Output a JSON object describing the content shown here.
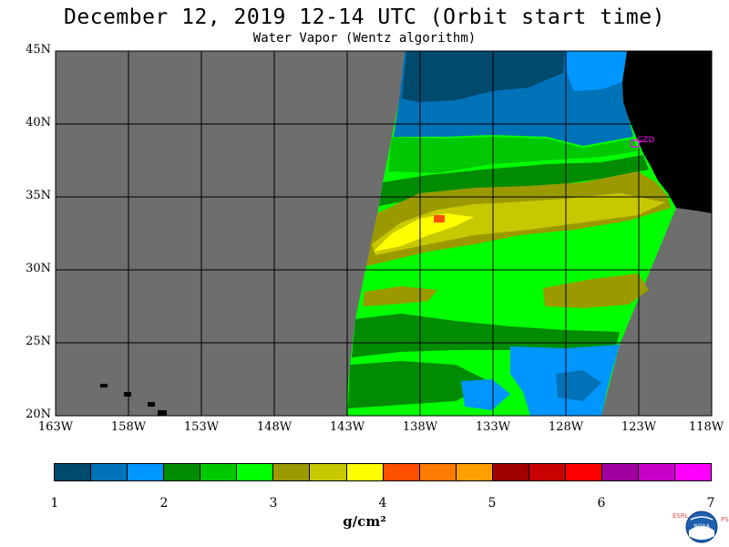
{
  "title": "December 12, 2019  12-14 UTC  (Orbit start time)",
  "subtitle": "Water Vapor (Wentz algorithm)",
  "lat_labels": [
    "45N",
    "40N",
    "35N",
    "30N",
    "25N",
    "20N"
  ],
  "lon_labels": [
    "163W",
    "158W",
    "153W",
    "148W",
    "143W",
    "138W",
    "133W",
    "128W",
    "123W",
    "118W"
  ],
  "extent": {
    "lon_min": -163,
    "lon_max": -118,
    "lat_min": 20,
    "lat_max": 45
  },
  "station_label": "CZD",
  "colorbar": {
    "ticks": [
      "1",
      "2",
      "3",
      "4",
      "5",
      "6",
      "7"
    ],
    "units": "g/cm²",
    "colors": [
      "#004a6e",
      "#0072b8",
      "#0096ff",
      "#008c00",
      "#00c800",
      "#00ff00",
      "#9a9a00",
      "#c8c800",
      "#ffff00",
      "#ff5000",
      "#ff7a00",
      "#ffa000",
      "#a00000",
      "#c80000",
      "#ff0000",
      "#a000a0",
      "#c800c8",
      "#ff00ff"
    ]
  },
  "map_colors": {
    "nodata": "#6e6e6e",
    "land": "#000000",
    "station": "#ff00ff"
  },
  "logo": {
    "left_text": "ESRL",
    "right_text": "PSD",
    "center_text": "NOAA"
  }
}
